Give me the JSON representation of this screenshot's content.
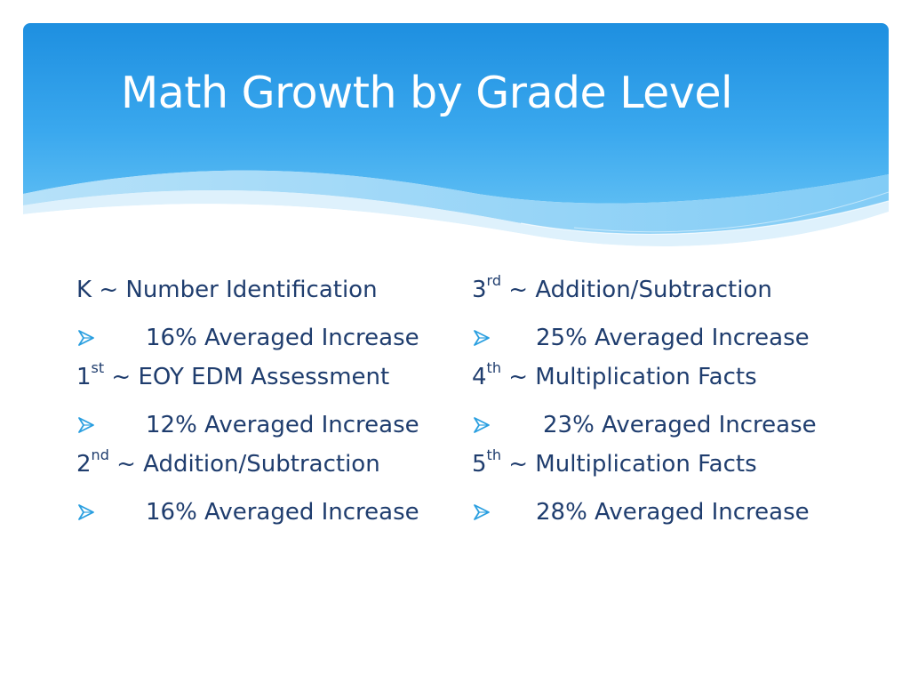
{
  "slide": {
    "title": "Math Growth by Grade Level"
  },
  "colors": {
    "header_blue": "#2f9fe8",
    "header_light": "#8fcff5",
    "text": "#1f3d6e",
    "bullet": "#2a9fe0"
  },
  "left_column": {
    "k_grade": "K",
    "k_topic": " ~ Number Identification",
    "k_result": "16% Averaged Increase",
    "g1_num": "1",
    "g1_sup": "st",
    "g1_topic": " ~ EOY EDM Assessment",
    "g1_result": "12% Averaged Increase",
    "g2_num": "2",
    "g2_sup": "nd",
    "g2_topic": " ~ Addition/Subtraction",
    "g2_result": "16% Averaged Increase"
  },
  "right_column": {
    "g3_num": "3",
    "g3_sup": "rd",
    "g3_topic": " ~ Addition/Subtraction",
    "g3_result": "25% Averaged Increase",
    "g4_num": "4",
    "g4_sup": "th",
    "g4_topic": " ~ Multiplication Facts",
    "g4_result": "23% Averaged Increase",
    "g5_num": "5",
    "g5_sup": "th",
    "g5_topic": " ~ Multiplication Facts",
    "g5_result": "28% Averaged Increase"
  },
  "icons": {
    "bullet": "arrowhead-bullet-icon"
  }
}
